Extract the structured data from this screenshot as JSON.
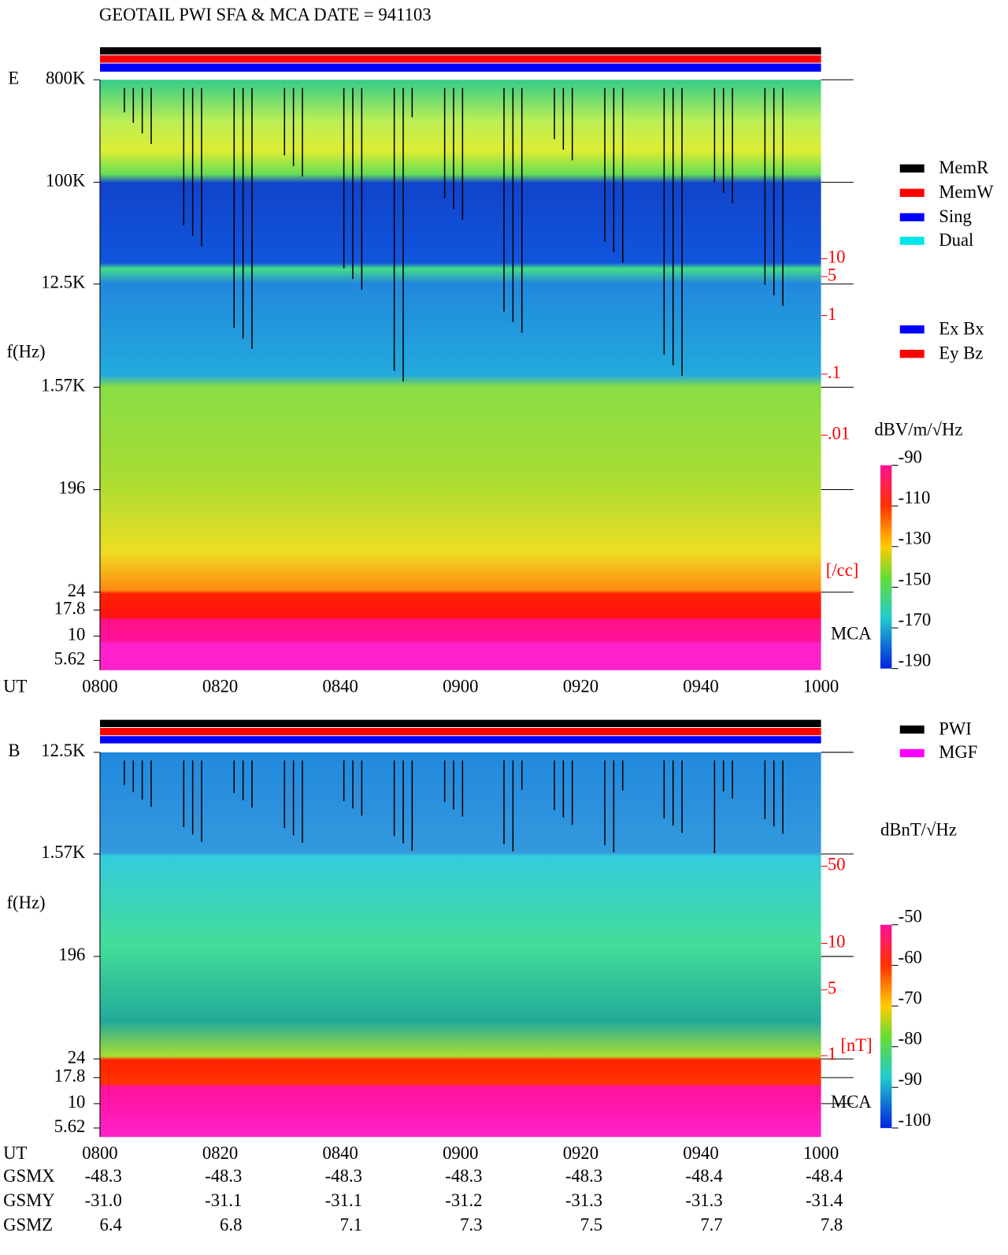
{
  "title": "GEOTAIL  PWI SFA & MCA   DATE = 941103",
  "panels": [
    {
      "label": "E",
      "y_label": "f(Hz)",
      "time_label": "UT",
      "freq_ticks": [
        "800K",
        "100K",
        "12.5K",
        "1.57K",
        "196",
        "24",
        "17.8",
        "10",
        "5.62"
      ],
      "time_ticks": [
        "0800",
        "0820",
        "0840",
        "0900",
        "0920",
        "0940",
        "1000"
      ],
      "legend": [
        {
          "name": "MemR",
          "color": "#000000"
        },
        {
          "name": "MemW",
          "color": "#ff0000"
        },
        {
          "name": "Sing",
          "color": "#0000ff"
        },
        {
          "name": "Dual",
          "color": "#00e5e5"
        }
      ],
      "legend2": [
        {
          "name": "Ex Bx",
          "color": "#0000ff"
        },
        {
          "name": "Ey Bz",
          "color": "#ff0000"
        }
      ],
      "scale_ticks": [
        "10",
        "5",
        "1",
        ".1",
        ".01"
      ],
      "scale_unit": "[/cc]",
      "mca_label": "MCA",
      "colorbar_unit": "dBV/m/√Hz",
      "colorbar_ticks": [
        -90,
        -110,
        -130,
        -150,
        -170,
        -190
      ]
    },
    {
      "label": "B",
      "y_label": "f(Hz)",
      "time_label": "UT",
      "freq_ticks": [
        "12.5K",
        "1.57K",
        "196",
        "24",
        "17.8",
        "10",
        "5.62"
      ],
      "time_ticks": [
        "0800",
        "0820",
        "0840",
        "0900",
        "0920",
        "0940",
        "1000"
      ],
      "legend": [
        {
          "name": "PWI",
          "color": "#000000"
        },
        {
          "name": "MGF",
          "color": "#ff00ff"
        }
      ],
      "scale_ticks": [
        "50",
        "10",
        "5",
        "1"
      ],
      "scale_unit": "[nT]",
      "mca_label": "MCA",
      "colorbar_unit": "dBnT/√Hz",
      "colorbar_ticks": [
        -50,
        -60,
        -70,
        -80,
        -90,
        -100
      ]
    }
  ],
  "orbit": [
    {
      "label": "GSMX",
      "values": [
        "-48.3",
        "-48.3",
        "-48.3",
        "-48.3",
        "-48.3",
        "-48.4",
        "-48.4"
      ]
    },
    {
      "label": "GSMY",
      "values": [
        "-31.0",
        "-31.1",
        "-31.1",
        "-31.2",
        "-31.3",
        "-31.3",
        "-31.4"
      ]
    },
    {
      "label": "GSMZ",
      "values": [
        "6.4",
        "6.8",
        "7.1",
        "7.3",
        "7.5",
        "7.7",
        "7.8"
      ]
    }
  ]
}
